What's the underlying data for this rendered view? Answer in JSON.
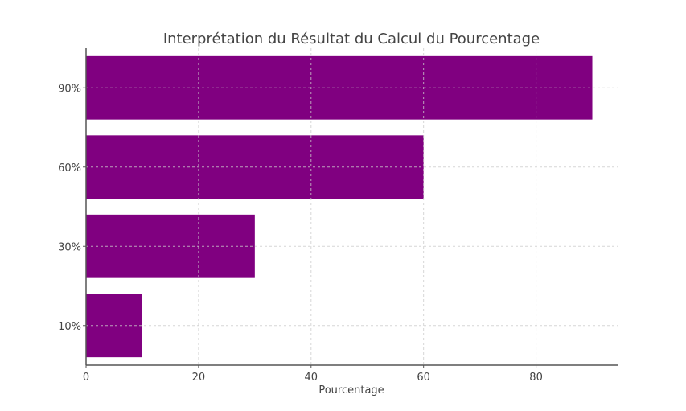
{
  "chart_data": {
    "type": "bar",
    "orientation": "horizontal",
    "title": "Interprétation du Résultat du Calcul du Pourcentage",
    "xlabel": "Pourcentage",
    "ylabel": "",
    "categories": [
      "10%",
      "30%",
      "60%",
      "90%"
    ],
    "values": [
      10,
      30,
      60,
      90
    ],
    "xlim": [
      0,
      94.5
    ],
    "xticks": [
      0,
      20,
      40,
      60,
      80
    ],
    "grid": true,
    "legend": null,
    "colors": {
      "bar": "#800080",
      "axis": "#555555",
      "grid": "#cccccc"
    }
  }
}
